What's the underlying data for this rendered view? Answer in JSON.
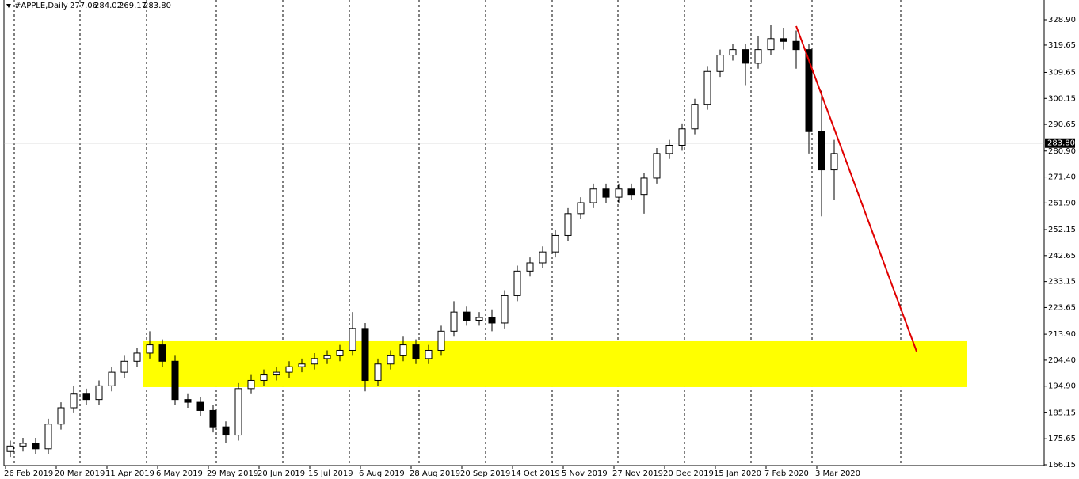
{
  "chart_data": {
    "type": "candlestick",
    "header": {
      "symbol": "#APPLE,Daily",
      "values": [
        277.06,
        284.02,
        269.17,
        283.8
      ],
      "value_labels": [
        "277.06",
        "284.02",
        "269.17",
        "283.80"
      ]
    },
    "categories": [
      null,
      null,
      null,
      null,
      null,
      null,
      null,
      null,
      null,
      null,
      null,
      null,
      null,
      null,
      null,
      null,
      null,
      null,
      null,
      null,
      null,
      null,
      null,
      null,
      null,
      null,
      null,
      null,
      null,
      null,
      null,
      null,
      null,
      null,
      null,
      null,
      null,
      null,
      null,
      null,
      null,
      null,
      null,
      null,
      null,
      null,
      null,
      null,
      null,
      null,
      null,
      null,
      null,
      null,
      null,
      null,
      null,
      null,
      null,
      null,
      null,
      null,
      null,
      null,
      null,
      null
    ],
    "open": [
      171,
      173,
      174,
      172,
      181,
      187,
      192,
      190,
      195,
      200,
      204,
      207,
      210,
      204,
      190,
      189,
      186,
      180,
      177,
      194,
      197,
      199,
      200,
      202,
      203,
      205,
      206,
      208,
      216,
      197,
      203,
      206,
      210,
      205,
      208,
      215,
      222,
      219,
      220,
      218,
      228,
      237,
      240,
      244,
      250,
      258,
      262,
      267,
      264,
      267,
      265,
      271,
      280,
      283,
      289,
      298,
      310,
      316,
      318,
      313,
      318,
      322,
      321,
      318,
      288,
      274
    ],
    "high": [
      175,
      176,
      176,
      183,
      189,
      195,
      194,
      197,
      202,
      206,
      209,
      215,
      212,
      206,
      192,
      191,
      188,
      182,
      196,
      199,
      201,
      202,
      204,
      205,
      207,
      208,
      210,
      222,
      218,
      205,
      208,
      213,
      212,
      210,
      217,
      226,
      224,
      222,
      223,
      230,
      239,
      242,
      246,
      252,
      260,
      264,
      269,
      269,
      269,
      269,
      273,
      282,
      285,
      291,
      300,
      312,
      318,
      320,
      320,
      323,
      327,
      326,
      325,
      320,
      303,
      285
    ],
    "low": [
      169,
      171,
      170,
      170,
      179,
      185,
      188,
      188,
      193,
      198,
      202,
      205,
      202,
      188,
      187,
      184,
      178,
      174,
      175,
      192,
      195,
      197,
      198,
      200,
      201,
      203,
      204,
      206,
      193,
      195,
      201,
      204,
      203,
      203,
      206,
      213,
      217,
      217,
      215,
      216,
      226,
      235,
      238,
      242,
      248,
      256,
      260,
      262,
      262,
      263,
      258,
      269,
      278,
      281,
      287,
      296,
      308,
      314,
      305,
      311,
      316,
      318,
      311,
      280,
      257,
      263
    ],
    "close": [
      173,
      174,
      172,
      181,
      187,
      192,
      190,
      195,
      200,
      204,
      207,
      210,
      204,
      190,
      189,
      186,
      180,
      177,
      194,
      197,
      199,
      200,
      202,
      203,
      205,
      206,
      208,
      216,
      197,
      203,
      206,
      210,
      205,
      208,
      215,
      222,
      219,
      220,
      218,
      228,
      237,
      240,
      244,
      250,
      258,
      262,
      267,
      264,
      267,
      265,
      271,
      280,
      283,
      289,
      298,
      310,
      316,
      318,
      313,
      318,
      322,
      321,
      318,
      288,
      274,
      280
    ],
    "up_color": "#ffffff",
    "down_color": "#000000",
    "xticks": [
      {
        "value": 0,
        "label": "26 Feb 2019"
      },
      {
        "value": 4,
        "label": "20 Mar 2019"
      },
      {
        "value": 8,
        "label": "11 Apr 2019"
      },
      {
        "value": 12,
        "label": "6 May 2019"
      },
      {
        "value": 16,
        "label": "29 May 2019"
      },
      {
        "value": 20,
        "label": "20 Jun 2019"
      },
      {
        "value": 24,
        "label": "15 Jul 2019"
      },
      {
        "value": 28,
        "label": "6 Aug 2019"
      },
      {
        "value": 32,
        "label": "28 Aug 2019"
      },
      {
        "value": 36,
        "label": "20 Sep 2019"
      },
      {
        "value": 40,
        "label": "14 Oct 2019"
      },
      {
        "value": 44,
        "label": "5 Nov 2019"
      },
      {
        "value": 48,
        "label": "27 Nov 2019"
      },
      {
        "value": 52,
        "label": "20 Dec 2019"
      },
      {
        "value": 56,
        "label": "15 Jan 2020"
      },
      {
        "value": 60,
        "label": "7 Feb 2020"
      },
      {
        "value": 64,
        "label": "3 Mar 2020"
      }
    ],
    "ylim": [
      165.86,
      336.14
    ],
    "yticks": [
      {
        "value": 328.9,
        "label": "328.90"
      },
      {
        "value": 319.65,
        "label": "319.65"
      },
      {
        "value": 309.65,
        "label": "309.65"
      },
      {
        "value": 300.15,
        "label": "300.15"
      },
      {
        "value": 290.65,
        "label": "290.65"
      },
      {
        "value": 280.9,
        "label": "280.90"
      },
      {
        "value": 271.4,
        "label": "271.40"
      },
      {
        "value": 261.9,
        "label": "261.90"
      },
      {
        "value": 252.15,
        "label": "252.15"
      },
      {
        "value": 242.65,
        "label": "242.65"
      },
      {
        "value": 233.15,
        "label": "233.15"
      },
      {
        "value": 223.65,
        "label": "223.65"
      },
      {
        "value": 213.9,
        "label": "213.90"
      },
      {
        "value": 204.4,
        "label": "204.40"
      },
      {
        "value": 194.9,
        "label": "194.90"
      },
      {
        "value": 185.15,
        "label": "185.15"
      },
      {
        "value": 175.65,
        "label": "175.65"
      },
      {
        "value": 166.15,
        "label": "166.15"
      }
    ],
    "zones": [
      {
        "color": "#ffff00",
        "x": [
          11,
          76
        ],
        "y": [
          194.54,
          211.34
        ]
      }
    ],
    "trendlines": [
      {
        "color": "#e00000",
        "x": [
          62.5,
          72
        ],
        "y": [
          326.6,
          207.6
        ]
      }
    ]
  }
}
